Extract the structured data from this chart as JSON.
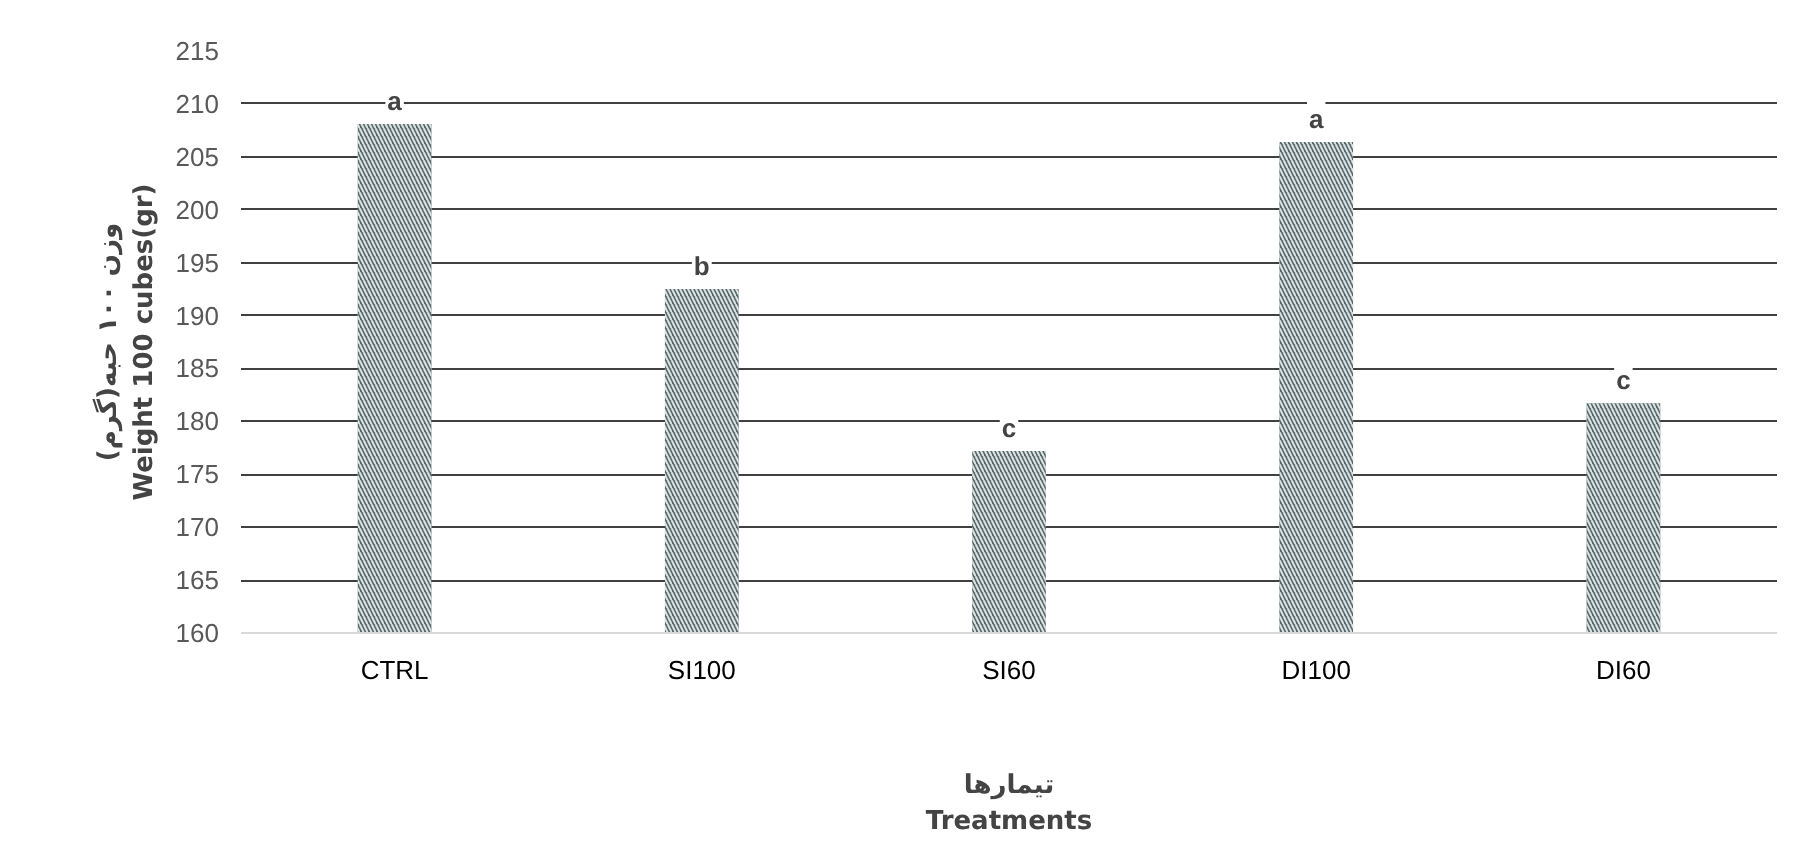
{
  "chart_data": {
    "type": "bar",
    "categories": [
      "CTRL",
      "SI100",
      "SI60",
      "DI100",
      "DI60"
    ],
    "values": [
      208.1,
      192.5,
      177.2,
      206.4,
      181.7
    ],
    "color": "#55696b",
    "ylim": [
      160,
      215
    ],
    "yticks": [
      160,
      165,
      170,
      175,
      180,
      185,
      190,
      195,
      200,
      205,
      210,
      215
    ],
    "grid": "y",
    "ylabel": "وزن ۱۰۰ حبه(گرم)\nWeight 100 cubes(gr)",
    "xlabel": "تیمارها\nTreatments",
    "annotations": [
      {
        "text": "a",
        "x": "CTRL",
        "y": 208.1
      },
      {
        "text": "b",
        "x": "SI100",
        "y": 192.5
      },
      {
        "text": "c",
        "x": "SI60",
        "y": 177.2
      },
      {
        "text": "a",
        "x": "DI100",
        "y": 206.4
      },
      {
        "text": "c",
        "x": "DI60",
        "y": 181.7
      }
    ]
  }
}
